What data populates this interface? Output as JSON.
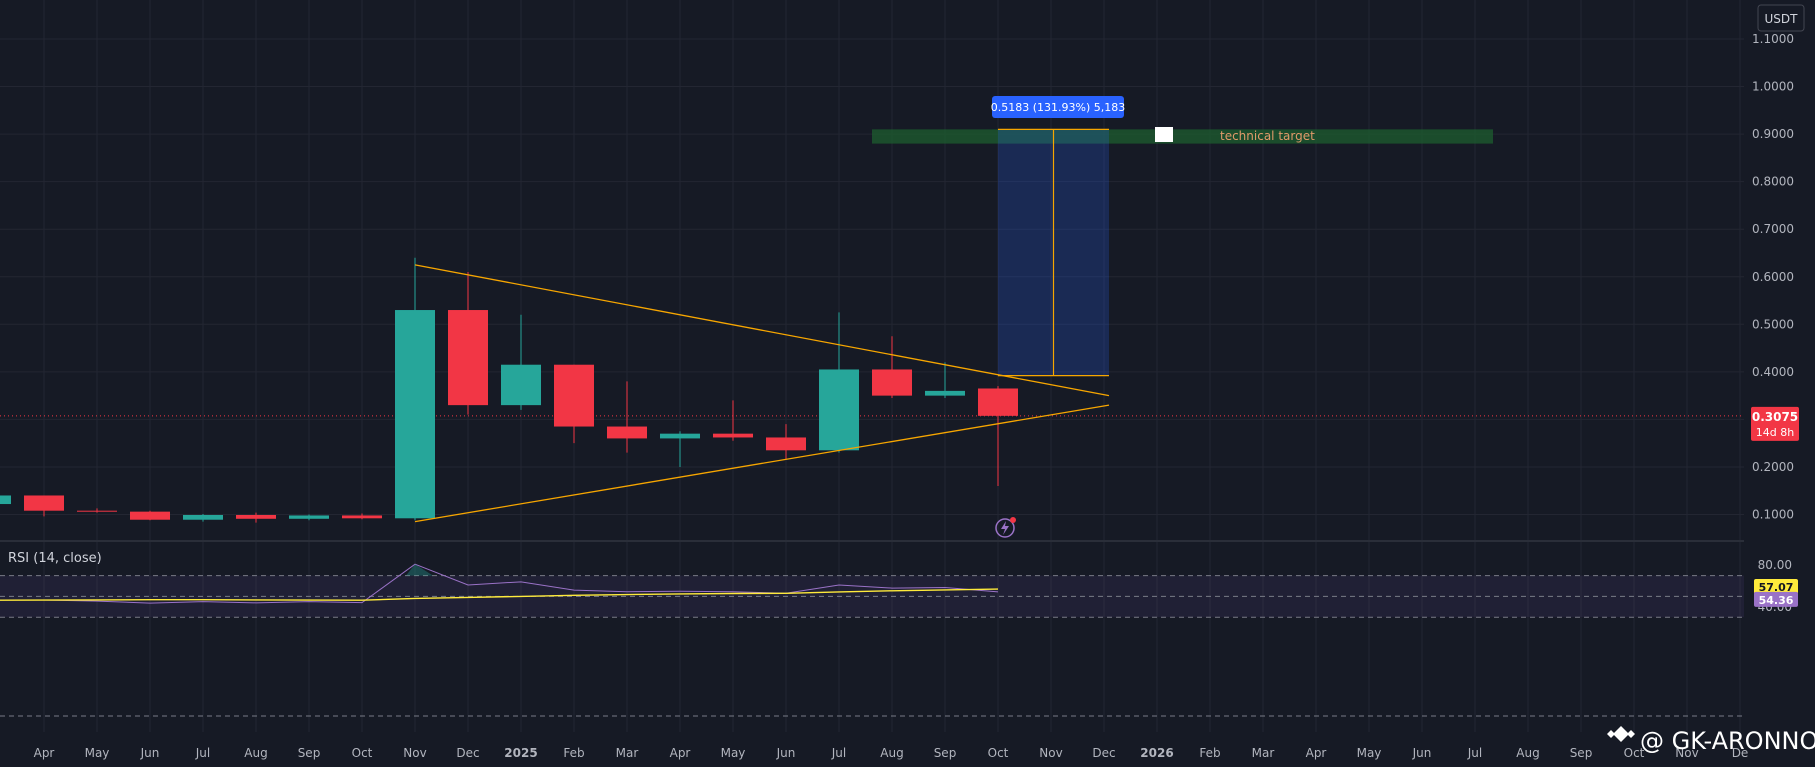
{
  "chart_data": [
    {
      "type": "candlestick",
      "interval": "1M",
      "currency": "USDT",
      "x_axis": {
        "ticks": [
          "Apr",
          "May",
          "Jun",
          "Jul",
          "Aug",
          "Sep",
          "Oct",
          "Nov",
          "Dec",
          "2025",
          "Feb",
          "Mar",
          "Apr",
          "May",
          "Jun",
          "Jul",
          "Aug",
          "Sep",
          "Oct",
          "Nov",
          "Dec",
          "2026",
          "Feb",
          "Mar",
          "Apr",
          "May",
          "Jun",
          "Jul",
          "Aug",
          "Sep",
          "Oct",
          "Nov",
          "De"
        ]
      },
      "y_axis": {
        "ticks": [
          "0.1000",
          "0.2000",
          "0.3000",
          "0.4000",
          "0.5000",
          "0.6000",
          "0.7000",
          "0.8000",
          "0.9000",
          "1.0000",
          "1.1000"
        ]
      },
      "series": [
        {
          "x": "2024-03",
          "open": 0.122,
          "high": 0.14,
          "low": 0.118,
          "close": 0.14
        },
        {
          "x": "2024-04",
          "open": 0.14,
          "high": 0.14,
          "low": 0.096,
          "close": 0.108
        },
        {
          "x": "2024-05",
          "open": 0.108,
          "high": 0.113,
          "low": 0.104,
          "close": 0.106
        },
        {
          "x": "2024-06",
          "open": 0.106,
          "high": 0.108,
          "low": 0.088,
          "close": 0.089
        },
        {
          "x": "2024-07",
          "open": 0.089,
          "high": 0.101,
          "low": 0.085,
          "close": 0.099
        },
        {
          "x": "2024-08",
          "open": 0.099,
          "high": 0.104,
          "low": 0.083,
          "close": 0.091
        },
        {
          "x": "2024-09",
          "open": 0.091,
          "high": 0.1,
          "low": 0.088,
          "close": 0.098
        },
        {
          "x": "2024-10",
          "open": 0.098,
          "high": 0.102,
          "low": 0.09,
          "close": 0.092
        },
        {
          "x": "2024-11",
          "open": 0.092,
          "high": 0.64,
          "low": 0.088,
          "close": 0.53
        },
        {
          "x": "2024-12",
          "open": 0.53,
          "high": 0.61,
          "low": 0.31,
          "close": 0.33
        },
        {
          "x": "2025-01",
          "open": 0.33,
          "high": 0.52,
          "low": 0.32,
          "close": 0.415
        },
        {
          "x": "2025-02",
          "open": 0.415,
          "high": 0.415,
          "low": 0.25,
          "close": 0.285
        },
        {
          "x": "2025-03",
          "open": 0.285,
          "high": 0.38,
          "low": 0.23,
          "close": 0.26
        },
        {
          "x": "2025-04",
          "open": 0.26,
          "high": 0.275,
          "low": 0.2,
          "close": 0.27
        },
        {
          "x": "2025-05",
          "open": 0.27,
          "high": 0.34,
          "low": 0.255,
          "close": 0.262
        },
        {
          "x": "2025-06",
          "open": 0.262,
          "high": 0.29,
          "low": 0.215,
          "close": 0.235
        },
        {
          "x": "2025-07",
          "open": 0.235,
          "high": 0.525,
          "low": 0.23,
          "close": 0.405
        },
        {
          "x": "2025-08",
          "open": 0.405,
          "high": 0.475,
          "low": 0.345,
          "close": 0.35
        },
        {
          "x": "2025-09",
          "open": 0.35,
          "high": 0.42,
          "low": 0.345,
          "close": 0.36
        },
        {
          "x": "2025-10",
          "open": 0.365,
          "high": 0.37,
          "low": 0.16,
          "close": 0.3075
        }
      ],
      "last_price": {
        "value": "0.3075",
        "countdown": "14d 8h",
        "color": "#f23645"
      },
      "trendlines": [
        {
          "from": {
            "x": "2024-11",
            "y": 0.625
          },
          "to": {
            "x": "2025-12",
            "y": 0.35
          },
          "color": "#f7a600"
        },
        {
          "from": {
            "x": "2024-11",
            "y": 0.085
          },
          "to": {
            "x": "2025-12",
            "y": 0.33
          },
          "color": "#f7a600"
        }
      ],
      "target_zone": {
        "label": "technical target",
        "from": "2025-08",
        "to": "2026-07",
        "y_low": 0.88,
        "y_high": 0.91,
        "color": "#1e5e2f"
      },
      "measure": {
        "label": "0.5183 (131.93%) 5,183",
        "from": "2025-10",
        "to": "2025-12",
        "y_low": 0.392,
        "y_high": 0.91
      },
      "colors": {
        "up": "#26a69a",
        "down": "#f23645",
        "background": "#161a25",
        "grid": "#232632",
        "axis_text": "#b2b5be"
      }
    },
    {
      "type": "line",
      "title": "RSI (14, close)",
      "y_axis": {
        "ticks": [
          "40.00",
          "80.00"
        ],
        "bands": [
          70,
          50,
          30
        ]
      },
      "series": [
        {
          "name": "RSI",
          "color": "#9a72c7",
          "points": [
            {
              "x": "2024-02",
              "y": 50.5
            },
            {
              "x": "2024-03",
              "y": 46.5
            },
            {
              "x": "2024-04",
              "y": 46.5
            },
            {
              "x": "2024-05",
              "y": 45.5
            },
            {
              "x": "2024-06",
              "y": 43.5
            },
            {
              "x": "2024-07",
              "y": 45.0
            },
            {
              "x": "2024-08",
              "y": 43.8
            },
            {
              "x": "2024-09",
              "y": 45.0
            },
            {
              "x": "2024-10",
              "y": 44.0
            },
            {
              "x": "2024-11",
              "y": 81.0
            },
            {
              "x": "2024-12",
              "y": 61.0
            },
            {
              "x": "2025-01",
              "y": 64.0
            },
            {
              "x": "2025-02",
              "y": 56.0
            },
            {
              "x": "2025-03",
              "y": 54.5
            },
            {
              "x": "2025-04",
              "y": 55.0
            },
            {
              "x": "2025-05",
              "y": 54.5
            },
            {
              "x": "2025-06",
              "y": 53.0
            },
            {
              "x": "2025-07",
              "y": 61.0
            },
            {
              "x": "2025-08",
              "y": 58.0
            },
            {
              "x": "2025-09",
              "y": 58.5
            },
            {
              "x": "2025-10",
              "y": 54.36
            }
          ]
        },
        {
          "name": "RSI-based MA",
          "color": "#ffeb3b",
          "points": [
            {
              "x": "2024-02",
              "y": 46.0
            },
            {
              "x": "2024-03",
              "y": 46.3
            },
            {
              "x": "2024-04",
              "y": 46.5
            },
            {
              "x": "2024-05",
              "y": 46.6
            },
            {
              "x": "2024-06",
              "y": 46.8
            },
            {
              "x": "2024-07",
              "y": 46.8
            },
            {
              "x": "2024-08",
              "y": 46.6
            },
            {
              "x": "2024-09",
              "y": 46.5
            },
            {
              "x": "2024-10",
              "y": 46.4
            },
            {
              "x": "2024-11",
              "y": 48.0
            },
            {
              "x": "2024-12",
              "y": 49.0
            },
            {
              "x": "2025-01",
              "y": 50.0
            },
            {
              "x": "2025-02",
              "y": 51.0
            },
            {
              "x": "2025-03",
              "y": 51.8
            },
            {
              "x": "2025-04",
              "y": 52.4
            },
            {
              "x": "2025-05",
              "y": 52.8
            },
            {
              "x": "2025-06",
              "y": 53.0
            },
            {
              "x": "2025-07",
              "y": 54.3
            },
            {
              "x": "2025-08",
              "y": 55.4
            },
            {
              "x": "2025-09",
              "y": 56.2
            },
            {
              "x": "2025-10",
              "y": 57.07
            }
          ]
        }
      ],
      "last_values": [
        {
          "value": "57.07",
          "color": "#ffeb3b"
        },
        {
          "value": "54.36",
          "color": "#9a72c7"
        }
      ]
    }
  ],
  "watermark": {
    "text": "@ GK-ARONNO"
  }
}
